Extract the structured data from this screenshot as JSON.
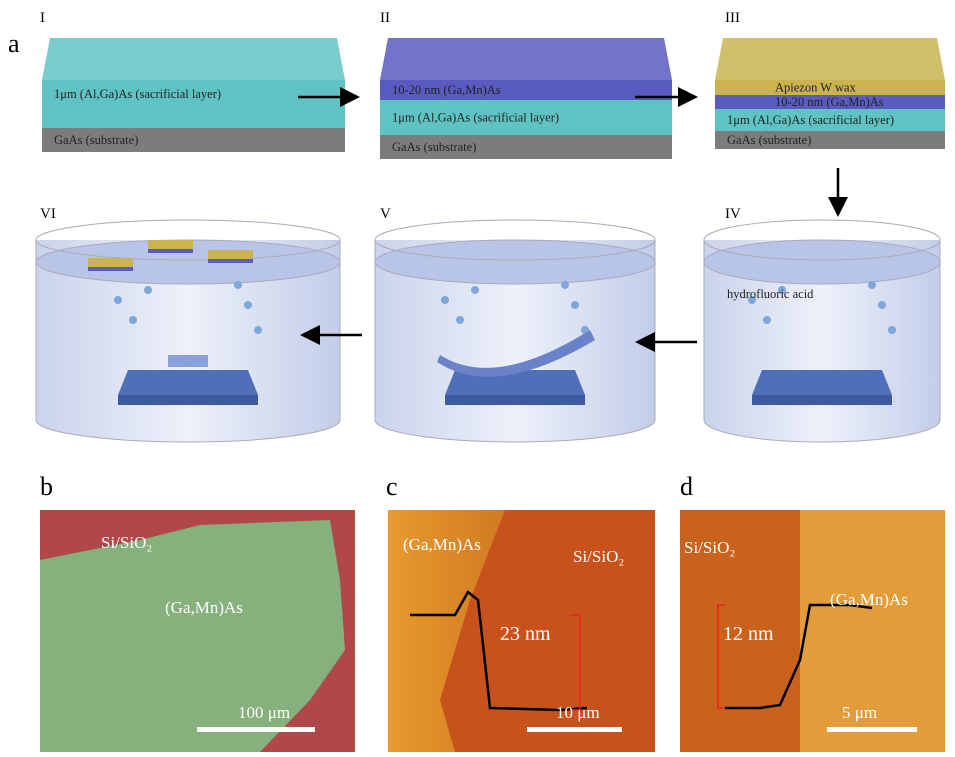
{
  "panel_a": {
    "label": "a",
    "steps": [
      {
        "numeral": "I",
        "layers": [
          "1μm (Al,Ga)As (sacrificial layer)",
          "GaAs (substrate)"
        ]
      },
      {
        "numeral": "II",
        "layers": [
          "10-20 nm (Ga,Mn)As",
          "1μm (Al,Ga)As (sacrificial layer)",
          "GaAs (substrate)"
        ]
      },
      {
        "numeral": "III",
        "layers": [
          "Apiezon W wax",
          "10-20 nm (Ga,Mn)As",
          "1μm (Al,Ga)As (sacrificial layer)",
          "GaAs (substrate)"
        ]
      },
      {
        "numeral": "IV",
        "note": "hydrofluoric acid"
      },
      {
        "numeral": "V"
      },
      {
        "numeral": "VI"
      }
    ]
  },
  "panel_b": {
    "label": "b",
    "substrate": "Si/SiO₂",
    "flake": "(Ga,Mn)As",
    "scale": "100 μm"
  },
  "panel_c": {
    "label": "c",
    "flake": "(Ga,Mn)As",
    "substrate": "Si/SiO₂",
    "height": "23 nm",
    "scale": "10 μm"
  },
  "panel_d": {
    "label": "d",
    "substrate": "Si/SiO₂",
    "flake": "(Ga,Mn)As",
    "height": "12 nm",
    "scale": "5 μm"
  }
}
